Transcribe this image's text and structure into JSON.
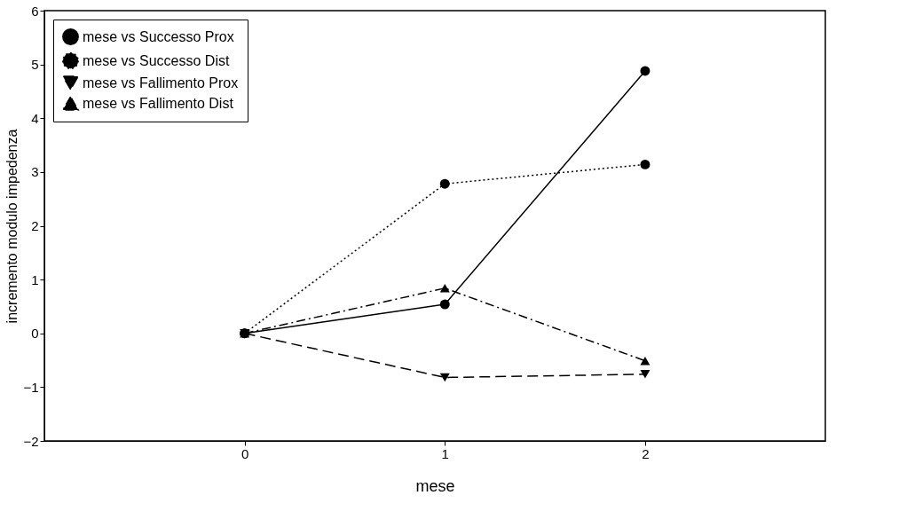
{
  "chart_data": {
    "type": "line",
    "xlabel": "mese",
    "ylabel": "incremento modulo impedenza",
    "x": [
      0,
      1,
      2
    ],
    "xlim": [
      -1,
      2.9
    ],
    "xticks": [
      0,
      1,
      2
    ],
    "ylim": [
      -2,
      6
    ],
    "yticks": [
      -2,
      -1,
      0,
      1,
      2,
      3,
      4,
      5,
      6
    ],
    "grid": false,
    "legend": "top left",
    "series": [
      {
        "name": "mese vs Successo Prox",
        "color": "#000000",
        "values": [
          0,
          0.54,
          4.88
        ],
        "marker": "circle",
        "line_style": "solid"
      },
      {
        "name": "mese vs Successo Dist",
        "color": "#000000",
        "values": [
          0,
          2.78,
          3.14
        ],
        "marker": "circle",
        "line_style": "dotted"
      },
      {
        "name": "mese vs Fallimento Prox",
        "color": "#000000",
        "values": [
          0,
          -0.82,
          -0.76
        ],
        "marker": "triangle-down",
        "line_style": "dashed"
      },
      {
        "name": "mese vs Fallimento Dist",
        "color": "#000000",
        "values": [
          0,
          0.84,
          -0.51
        ],
        "marker": "triangle",
        "line_style": "dashdot"
      }
    ]
  }
}
